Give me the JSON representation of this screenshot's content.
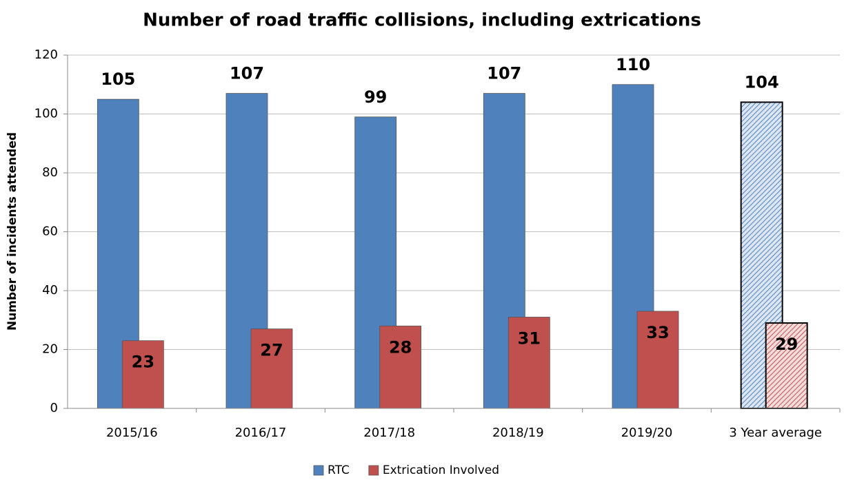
{
  "chart_data": {
    "type": "bar",
    "title": "Number of road traffic collisions, including extrications",
    "y_label": "Number of incidents attended",
    "categories": [
      "2015/16",
      "2016/17",
      "2017/18",
      "2018/19",
      "2019/20",
      "3 Year average"
    ],
    "series": [
      {
        "name": "RTC",
        "color": "#4f81bd",
        "values": [
          105,
          107,
          99,
          107,
          110,
          104
        ]
      },
      {
        "name": "Extrication Involved",
        "color": "#c0504d",
        "values": [
          23,
          27,
          28,
          31,
          33,
          29
        ]
      }
    ],
    "hatched": [
      false,
      false,
      false,
      false,
      false,
      true
    ],
    "ylim": [
      0,
      120
    ],
    "yticks": [
      0,
      20,
      40,
      60,
      80,
      100,
      120
    ],
    "grid": true,
    "legend": "bottom"
  }
}
